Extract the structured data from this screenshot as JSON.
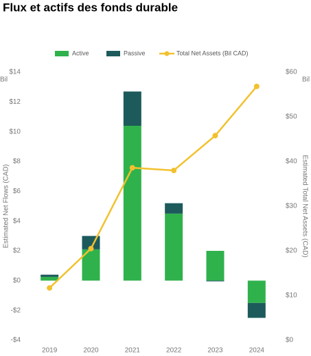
{
  "chart_data": {
    "type": "bar",
    "title": "Flux et actifs des fonds durable",
    "y_unit": "Bil",
    "y2_unit": "Bil",
    "y_label": "Estimated Net Flows (CAD)",
    "y2_label": "Estimated Total Net Assets (CAD)",
    "categories": [
      "2019",
      "2020",
      "2021",
      "2022",
      "2023",
      "2024"
    ],
    "series": [
      {
        "name": "Active",
        "type": "bar",
        "color": "#2fb24c",
        "values": [
          0.25,
          2.1,
          10.4,
          4.5,
          2.0,
          -1.5
        ]
      },
      {
        "name": "Passive",
        "type": "bar",
        "color": "#1d5a5b",
        "values": [
          0.15,
          0.9,
          2.3,
          0.7,
          -0.05,
          -1.0
        ]
      },
      {
        "name": "Total Net Assets (Bil CAD)",
        "type": "line",
        "axis": "y2",
        "color": "#f2c12e",
        "values": [
          11.7,
          20.5,
          38.6,
          38.0,
          45.8,
          56.8
        ]
      }
    ],
    "ylim": [
      -4,
      14
    ],
    "yticks": [
      {
        "value": -4,
        "label": "-$4"
      },
      {
        "value": -2,
        "label": "-$2"
      },
      {
        "value": 0,
        "label": "$0"
      },
      {
        "value": 2,
        "label": "$2"
      },
      {
        "value": 4,
        "label": "$4"
      },
      {
        "value": 6,
        "label": "$6"
      },
      {
        "value": 8,
        "label": "$8"
      },
      {
        "value": 10,
        "label": "$10"
      },
      {
        "value": 12,
        "label": "$12"
      },
      {
        "value": 14,
        "label": "$14"
      }
    ],
    "y2lim": [
      0,
      60
    ],
    "y2ticks": [
      {
        "value": 0,
        "label": "$0"
      },
      {
        "value": 10,
        "label": "$10"
      },
      {
        "value": 20,
        "label": "$20"
      },
      {
        "value": 30,
        "label": "$30"
      },
      {
        "value": 40,
        "label": "$40"
      },
      {
        "value": 50,
        "label": "$50"
      },
      {
        "value": 60,
        "label": "$60"
      }
    ],
    "grid": false
  }
}
